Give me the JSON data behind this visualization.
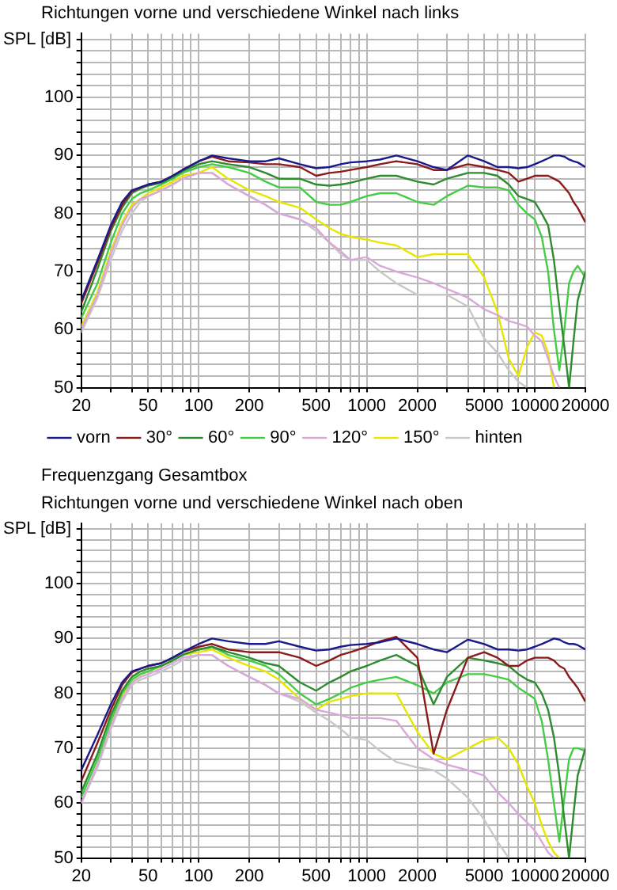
{
  "chart_data": [
    {
      "type": "line",
      "title": "Richtungen vorne und verschiedene Winkel nach links",
      "ylabel": "SPL [dB]",
      "log": "x",
      "grid": true,
      "legend": "bottom",
      "marker": "none",
      "line_style": "solid",
      "xlim": [
        20,
        20000
      ],
      "ylim": [
        50,
        111
      ],
      "xticks": [
        20,
        {
          "value": 30,
          "label": null
        },
        {
          "value": 40,
          "label": null
        },
        50,
        {
          "value": 60,
          "label": null
        },
        {
          "value": 70,
          "label": null
        },
        {
          "value": 80,
          "label": null
        },
        {
          "value": 90,
          "label": null
        },
        100,
        200,
        {
          "value": 300,
          "label": null
        },
        {
          "value": 400,
          "label": null
        },
        500,
        {
          "value": 600,
          "label": null
        },
        {
          "value": 700,
          "label": null
        },
        {
          "value": 800,
          "label": null
        },
        {
          "value": 900,
          "label": null
        },
        1000,
        2000,
        {
          "value": 3000,
          "label": null
        },
        {
          "value": 4000,
          "label": null
        },
        5000,
        {
          "value": 6000,
          "label": null
        },
        {
          "value": 7000,
          "label": null
        },
        {
          "value": 8000,
          "label": null
        },
        {
          "value": 9000,
          "label": null
        },
        10000,
        20000
      ],
      "yticks": [
        50,
        {
          "value": 52,
          "label": null
        },
        {
          "value": 54,
          "label": null
        },
        {
          "value": 56,
          "label": null
        },
        {
          "value": 58,
          "label": null
        },
        60,
        {
          "value": 62,
          "label": null
        },
        {
          "value": 64,
          "label": null
        },
        {
          "value": 66,
          "label": null
        },
        {
          "value": 68,
          "label": null
        },
        70,
        {
          "value": 72,
          "label": null
        },
        {
          "value": 74,
          "label": null
        },
        {
          "value": 76,
          "label": null
        },
        {
          "value": 78,
          "label": null
        },
        80,
        {
          "value": 82,
          "label": null
        },
        {
          "value": 84,
          "label": null
        },
        {
          "value": 86,
          "label": null
        },
        {
          "value": 88,
          "label": null
        },
        90,
        {
          "value": 92,
          "label": null
        },
        {
          "value": 94,
          "label": null
        },
        {
          "value": 96,
          "label": null
        },
        {
          "value": 98,
          "label": null
        },
        100,
        {
          "value": 102,
          "label": null
        },
        {
          "value": 104,
          "label": null
        },
        {
          "value": 106,
          "label": null
        },
        {
          "value": 108,
          "label": null
        },
        {
          "value": 110,
          "label": null
        }
      ],
      "x": [
        20,
        25,
        30,
        35,
        40,
        45,
        50,
        60,
        70,
        80,
        100,
        120,
        150,
        200,
        250,
        300,
        400,
        500,
        600,
        700,
        800,
        1000,
        1200,
        1500,
        2000,
        2500,
        3000,
        4000,
        5000,
        6000,
        7000,
        8000,
        9000,
        10000,
        11000,
        12000,
        13000,
        14000,
        15000,
        16000,
        17000,
        18000,
        20000
      ],
      "series": [
        {
          "name": "vorn",
          "color": "#1a1a8c",
          "values": [
            65,
            72,
            78,
            82,
            84,
            84.5,
            85,
            85.5,
            86.5,
            87.5,
            89,
            90,
            89.5,
            89,
            89,
            89.5,
            88.5,
            87.8,
            88,
            88.5,
            88.8,
            89,
            89.3,
            90,
            89,
            88,
            87.5,
            90,
            89,
            88,
            88,
            87.8,
            88,
            88.5,
            89,
            89.5,
            90,
            90,
            89.8,
            89.3,
            89,
            88.8,
            88
          ]
        },
        {
          "name": "30°",
          "color": "#8b1a1a",
          "values": [
            64.5,
            71.5,
            77.5,
            81.5,
            83.8,
            84.5,
            85,
            85.5,
            86.5,
            87.5,
            89,
            89.8,
            89,
            88.8,
            88.5,
            88.5,
            88,
            86.5,
            87,
            87.2,
            87.5,
            88,
            88.5,
            89,
            88.5,
            87.5,
            87.5,
            88.5,
            88,
            87.5,
            87,
            85.5,
            86,
            86.5,
            86.5,
            86.5,
            86,
            85.5,
            84.5,
            83.5,
            82,
            81,
            78.5
          ]
        },
        {
          "name": "60°",
          "color": "#2e8b2e",
          "values": [
            63,
            70.5,
            77,
            81,
            83.5,
            84.3,
            84.8,
            85.3,
            86.3,
            87.3,
            88.5,
            89,
            88.5,
            88,
            87,
            86,
            86,
            85,
            84.8,
            85,
            85.3,
            86,
            86.5,
            86.5,
            85.5,
            85,
            86,
            87,
            87,
            86.5,
            85,
            83,
            82.5,
            82,
            80,
            78,
            72,
            64,
            57,
            50,
            58,
            65,
            70
          ]
        },
        {
          "name": "90°",
          "color": "#44cc44",
          "values": [
            62,
            68,
            75,
            80,
            82.5,
            83.5,
            84,
            85,
            86,
            87,
            88,
            88.5,
            88,
            87,
            85.5,
            84.5,
            84.5,
            82,
            81.5,
            81.5,
            82,
            83,
            83.5,
            83.5,
            82,
            81.5,
            83,
            84.8,
            84.5,
            84.5,
            84,
            81.5,
            80,
            79,
            76,
            70,
            60,
            53,
            60,
            68,
            70,
            71,
            69
          ]
        },
        {
          "name": "120°",
          "color": "#d8a8d8",
          "values": [
            60,
            66,
            73,
            78,
            81,
            82.5,
            83,
            84,
            85,
            86,
            87,
            87,
            85,
            83,
            81.5,
            80,
            79,
            77.5,
            75,
            73.5,
            72,
            72.5,
            71,
            70,
            69,
            68,
            67,
            65.5,
            63.5,
            62.5,
            61.5,
            61,
            60.5,
            59,
            58,
            55,
            52,
            50,
            null,
            null,
            null,
            null,
            null
          ]
        },
        {
          "name": "150°",
          "color": "#e6e600",
          "values": [
            60.5,
            66.5,
            73.5,
            78.5,
            81.5,
            82.5,
            83.5,
            84.5,
            85.5,
            86.5,
            87,
            88,
            86,
            84,
            83,
            82,
            81,
            79,
            77.5,
            76.5,
            76,
            75.5,
            75,
            74.5,
            72.5,
            73,
            73,
            73,
            69,
            63,
            55,
            52,
            57,
            59.5,
            59,
            56,
            50,
            null,
            null,
            null,
            null,
            null,
            null
          ]
        },
        {
          "name": "hinten",
          "color": "#c8c8c8",
          "values": [
            59.5,
            65.5,
            72,
            77,
            80,
            82,
            83,
            84,
            85,
            86,
            87,
            87,
            85,
            83,
            81.5,
            80,
            79,
            77,
            75,
            73,
            72,
            72,
            70,
            68,
            66,
            66,
            66,
            64,
            58.5,
            56,
            53,
            51,
            50,
            null,
            null,
            null,
            null,
            null,
            null,
            null,
            null,
            null,
            null
          ]
        }
      ]
    },
    {
      "type": "line",
      "title": "Frequenzgang Gesamtbox",
      "subtitle": "Richtungen vorne und verschiedene Winkel nach oben",
      "ylabel": "SPL [dB]",
      "log": "x",
      "grid": true,
      "marker": "none",
      "line_style": "solid",
      "xlim": [
        20,
        20000
      ],
      "ylim": [
        50,
        111
      ],
      "xticks": [
        20,
        {
          "value": 30,
          "label": null
        },
        {
          "value": 40,
          "label": null
        },
        50,
        {
          "value": 60,
          "label": null
        },
        {
          "value": 70,
          "label": null
        },
        {
          "value": 80,
          "label": null
        },
        {
          "value": 90,
          "label": null
        },
        100,
        200,
        {
          "value": 300,
          "label": null
        },
        {
          "value": 400,
          "label": null
        },
        500,
        {
          "value": 600,
          "label": null
        },
        {
          "value": 700,
          "label": null
        },
        {
          "value": 800,
          "label": null
        },
        {
          "value": 900,
          "label": null
        },
        1000,
        2000,
        {
          "value": 3000,
          "label": null
        },
        {
          "value": 4000,
          "label": null
        },
        5000,
        {
          "value": 6000,
          "label": null
        },
        {
          "value": 7000,
          "label": null
        },
        {
          "value": 8000,
          "label": null
        },
        {
          "value": 9000,
          "label": null
        },
        10000,
        20000
      ],
      "yticks": [
        50,
        {
          "value": 52,
          "label": null
        },
        {
          "value": 54,
          "label": null
        },
        {
          "value": 56,
          "label": null
        },
        {
          "value": 58,
          "label": null
        },
        60,
        {
          "value": 62,
          "label": null
        },
        {
          "value": 64,
          "label": null
        },
        {
          "value": 66,
          "label": null
        },
        {
          "value": 68,
          "label": null
        },
        70,
        {
          "value": 72,
          "label": null
        },
        {
          "value": 74,
          "label": null
        },
        {
          "value": 76,
          "label": null
        },
        {
          "value": 78,
          "label": null
        },
        80,
        {
          "value": 82,
          "label": null
        },
        {
          "value": 84,
          "label": null
        },
        {
          "value": 86,
          "label": null
        },
        {
          "value": 88,
          "label": null
        },
        90,
        {
          "value": 92,
          "label": null
        },
        {
          "value": 94,
          "label": null
        },
        {
          "value": 96,
          "label": null
        },
        {
          "value": 98,
          "label": null
        },
        100,
        {
          "value": 102,
          "label": null
        },
        {
          "value": 104,
          "label": null
        },
        {
          "value": 106,
          "label": null
        },
        {
          "value": 108,
          "label": null
        },
        {
          "value": 110,
          "label": null
        }
      ],
      "x": [
        20,
        25,
        30,
        35,
        40,
        45,
        50,
        60,
        70,
        80,
        100,
        120,
        150,
        200,
        250,
        300,
        400,
        500,
        600,
        700,
        800,
        1000,
        1200,
        1500,
        2000,
        2500,
        3000,
        4000,
        5000,
        6000,
        7000,
        8000,
        9000,
        10000,
        11000,
        12000,
        13000,
        14000,
        15000,
        16000,
        17000,
        18000,
        20000
      ],
      "series": [
        {
          "color": "#1a1a8c",
          "values": [
            66,
            72.5,
            78,
            82,
            84,
            84.5,
            85,
            85.5,
            86.5,
            87.5,
            89,
            90,
            89.5,
            89,
            89,
            89.5,
            88.5,
            87.8,
            88,
            88.5,
            88.8,
            89,
            89.3,
            90,
            89,
            88,
            87.5,
            89.8,
            89,
            88,
            88,
            87.8,
            88,
            88.5,
            89,
            89.5,
            90,
            89.8,
            89.3,
            89,
            89,
            88.8,
            88
          ]
        },
        {
          "color": "#8b1a1a",
          "values": [
            64,
            71,
            77,
            81.5,
            83.8,
            84.5,
            85,
            85.5,
            86.5,
            87.5,
            88.5,
            89,
            88,
            87.5,
            87.5,
            87.5,
            86.5,
            85,
            86,
            87,
            87.5,
            88.5,
            89.5,
            90.3,
            86.5,
            69,
            77,
            86.5,
            87.5,
            86.5,
            85,
            85,
            86,
            86.5,
            86.5,
            86.5,
            86,
            85,
            84.5,
            83,
            82,
            81,
            78.5
          ]
        },
        {
          "color": "#2e8b2e",
          "values": [
            62,
            69,
            76,
            80.5,
            83,
            84,
            84.5,
            85,
            86,
            87,
            88,
            88.5,
            87.5,
            86.5,
            85.5,
            85,
            82,
            80.5,
            82,
            83,
            84,
            85,
            86,
            87,
            85,
            78,
            83,
            86.5,
            86,
            85.5,
            85,
            83.5,
            82.5,
            82,
            80,
            77,
            72,
            65,
            57,
            50,
            58,
            65,
            70
          ]
        },
        {
          "color": "#44cc44",
          "values": [
            61,
            68,
            75,
            80,
            82.5,
            83.5,
            84,
            85,
            86,
            87,
            88,
            88.5,
            87,
            86,
            85,
            83.5,
            80,
            78,
            79,
            80,
            81,
            82,
            82.5,
            83,
            81.5,
            80,
            82,
            83.5,
            83.5,
            83,
            82.5,
            81,
            80,
            79,
            75,
            68,
            60,
            53,
            61,
            68,
            70,
            70,
            69.5
          ]
        },
        {
          "color": "#d8a8d8",
          "values": [
            60,
            67,
            74,
            79,
            82,
            83,
            83.5,
            84.5,
            85.5,
            86.5,
            87,
            87,
            85,
            83,
            81.5,
            80,
            79,
            77,
            76.5,
            76,
            75.5,
            75.5,
            75.5,
            75,
            70,
            68,
            67,
            66,
            65,
            62,
            60,
            58,
            56.5,
            55,
            53,
            51,
            50,
            null,
            null,
            null,
            null,
            null,
            null
          ]
        },
        {
          "color": "#e6e600",
          "values": [
            null,
            null,
            75,
            79.5,
            82.5,
            83.5,
            84,
            85,
            86,
            87,
            87.5,
            88,
            86.5,
            85,
            84,
            82.5,
            79,
            77,
            78.5,
            79,
            79.5,
            80,
            80,
            80,
            73,
            69,
            68,
            70,
            71.5,
            72,
            70,
            67,
            63,
            60,
            56,
            53,
            51,
            50,
            null,
            null,
            null,
            null,
            null
          ]
        },
        {
          "color": "#c8c8c8",
          "values": [
            60,
            66.5,
            73.5,
            78.5,
            81.5,
            82.5,
            83,
            84,
            85,
            86,
            87,
            87,
            85,
            83,
            81.5,
            80,
            78.5,
            76.5,
            75,
            73.5,
            72,
            71.5,
            69.5,
            67.5,
            66.5,
            66,
            64.5,
            61,
            57,
            53,
            50,
            null,
            null,
            null,
            null,
            null,
            null,
            null,
            null,
            null,
            null,
            null,
            null
          ]
        }
      ]
    }
  ]
}
